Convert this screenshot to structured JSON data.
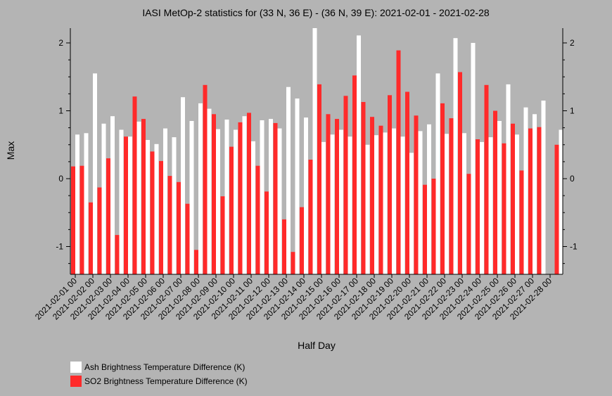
{
  "chart_data": {
    "type": "bar",
    "title": "IASI MetOp-2 statistics for (33 N, 36 E) - (36 N, 39 E): 2021-02-01 - 2021-02-28",
    "xlabel": "Half Day",
    "ylabel": "Max",
    "ylim": [
      -1.4,
      2.2
    ],
    "yticks": [
      -1,
      0,
      1,
      2
    ],
    "grid": false,
    "legend_position": "bottom-left",
    "x_tick_labels": [
      "2021-02-01 00",
      "2021-02-02 00",
      "2021-02-03 00",
      "2021-02-04 00",
      "2021-02-05 00",
      "2021-02-06 00",
      "2021-02-07 00",
      "2021-02-08 00",
      "2021-02-09 00",
      "2021-02-10 00",
      "2021-02-11 00",
      "2021-02-12 00",
      "2021-02-13 00",
      "2021-02-14 00",
      "2021-02-15 00",
      "2021-02-16 00",
      "2021-02-17 00",
      "2021-02-18 00",
      "2021-02-19 00",
      "2021-02-20 00",
      "2021-02-21 00",
      "2021-02-22 00",
      "2021-02-23 00",
      "2021-02-24 00",
      "2021-02-25 00",
      "2021-02-26 00",
      "2021-02-27 00",
      "2021-02-28 00"
    ],
    "series": [
      {
        "name": "Ash Brightness Temperature Difference (K)",
        "color": "#ffffff",
        "values": [
          0.65,
          0.67,
          1.55,
          0.81,
          0.92,
          0.72,
          0.62,
          0.84,
          0.57,
          0.51,
          0.74,
          0.61,
          1.2,
          0.85,
          1.11,
          1.03,
          0.73,
          0.87,
          0.72,
          0.92,
          0.55,
          0.86,
          0.88,
          0.74,
          1.35,
          1.18,
          0.9,
          2.22,
          0.54,
          0.65,
          0.72,
          0.62,
          2.11,
          0.5,
          0.64,
          0.68,
          0.74,
          0.62,
          0.38,
          0.7,
          0.8,
          1.55,
          0.66,
          2.07,
          0.67,
          2.0,
          0.54,
          0.61,
          0.85,
          1.39,
          0.65,
          1.05,
          0.95,
          1.15,
          null,
          0.72
        ]
      },
      {
        "name": "SO2 Brightness Temperature Difference (K)",
        "color": "#ff2a2a",
        "values": [
          0.18,
          0.19,
          -0.35,
          -0.13,
          0.3,
          -0.83,
          0.62,
          1.21,
          0.88,
          0.4,
          0.26,
          0.04,
          -0.05,
          -0.37,
          -1.05,
          1.38,
          0.95,
          -0.26,
          0.47,
          0.83,
          0.97,
          0.19,
          -0.19,
          0.82,
          -0.6,
          -1.08,
          -0.42,
          0.28,
          1.39,
          0.95,
          0.88,
          1.22,
          1.52,
          1.13,
          0.91,
          0.78,
          1.23,
          1.89,
          1.28,
          0.93,
          -0.09,
          0.0,
          1.11,
          0.89,
          1.57,
          0.07,
          0.58,
          1.38,
          1.0,
          0.52,
          0.81,
          0.12,
          0.74,
          0.76,
          null,
          0.5
        ]
      }
    ]
  }
}
